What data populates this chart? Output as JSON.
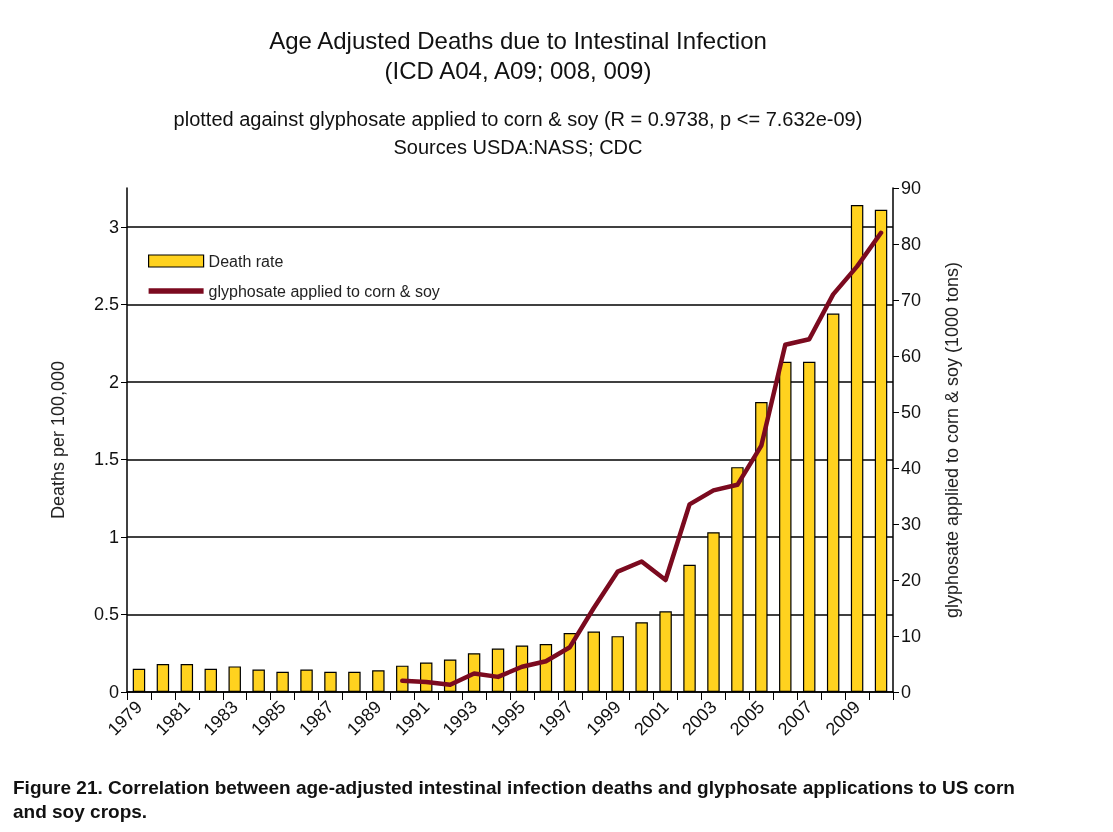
{
  "chart_data": {
    "type": "bar",
    "title": "Age Adjusted Deaths due to Intestinal Infection\n(ICD A04, A09; 008, 009)",
    "subtitle": "plotted against glyphosate applied to corn & soy (R = 0.9738, p <= 7.632e-09)",
    "annotations": [
      "Sources USDA:NASS; CDC",
      "Figure 21. Correlation between age-adjusted intestinal infection deaths and glyphosate applications to US corn and soy crops."
    ],
    "ylabel": "Deaths per 100,000",
    "y2label": "glyphosate applied to corn & soy (1000 tons)",
    "categories": [
      "1979",
      null,
      "1981",
      null,
      "1983",
      null,
      "1985",
      null,
      "1987",
      null,
      "1989",
      null,
      "1991",
      null,
      "1993",
      null,
      "1995",
      null,
      "1997",
      null,
      "1999",
      null,
      "2001",
      null,
      "2003",
      null,
      "2005",
      null,
      "2007",
      null,
      "2009",
      null
    ],
    "series": [
      {
        "name": "Death rate",
        "color": "#ffd21f",
        "values": [
          0.15,
          0.18,
          0.18,
          0.15,
          0.165,
          0.145,
          0.13,
          0.145,
          0.13,
          0.13,
          0.14,
          0.17,
          0.19,
          0.21,
          0.25,
          0.28,
          0.3,
          0.31,
          0.38,
          0.39,
          0.36,
          0.45,
          0.52,
          0.82,
          1.03,
          1.45,
          1.87,
          2.13,
          2.13,
          2.44,
          3.14,
          3.11
        ]
      },
      {
        "name": "glyphosate applied to corn & soy",
        "type": "line",
        "axis": "y2",
        "color": "#7b0a1f",
        "values": [
          null,
          null,
          null,
          null,
          null,
          null,
          null,
          null,
          null,
          null,
          null,
          2,
          1.8,
          1.3,
          3.3,
          2.7,
          4.5,
          5.5,
          8,
          15,
          21.5,
          23.3,
          20,
          33.5,
          36,
          37,
          44,
          62,
          63,
          71,
          76,
          82
        ]
      }
    ],
    "ylim": [
      0,
      3.25
    ],
    "yticks": [
      0,
      0.5,
      1,
      1.5,
      2,
      2.5,
      3
    ],
    "y2lim": [
      0,
      90
    ],
    "y2ticks": [
      0,
      10,
      20,
      30,
      40,
      50,
      60,
      70,
      80,
      90
    ],
    "grid": "y",
    "legend": "top left",
    "marker": "none",
    "line_style": "solid"
  }
}
